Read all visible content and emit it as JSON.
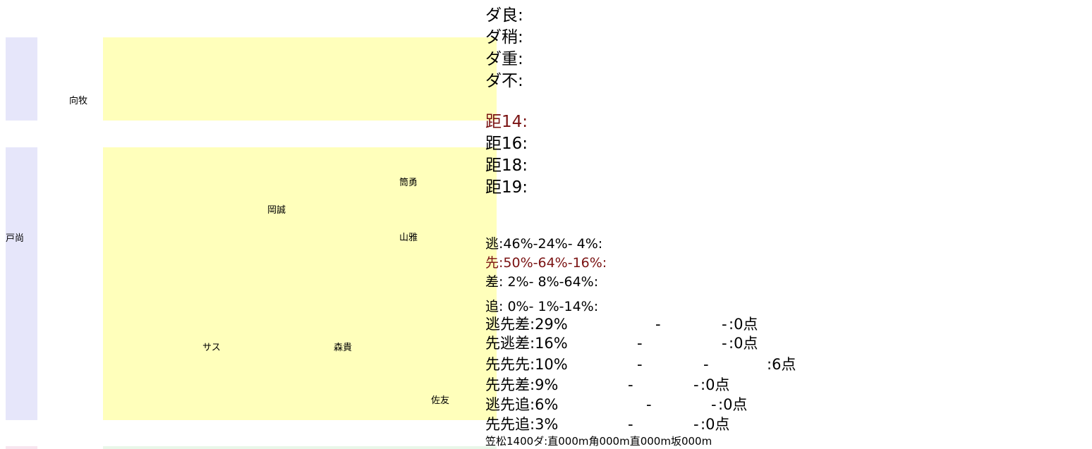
{
  "left_labels": {
    "top_lane": "向牧",
    "middle_lane": "戸尚"
  },
  "jockeys": [
    "筒勇",
    "岡誠",
    "山雅",
    "サス",
    "森貴",
    "佐友"
  ],
  "conditions": [
    "ダ良:",
    "ダ稍:",
    "ダ重:",
    "ダ不:"
  ],
  "distances": [
    {
      "label": "距14:",
      "active": true
    },
    {
      "label": "距16:",
      "active": false
    },
    {
      "label": "距18:",
      "active": false
    },
    {
      "label": "距19:",
      "active": false
    }
  ],
  "pace": [
    {
      "label": "逃:46%-24%- 4%:",
      "active": false
    },
    {
      "label": "先:50%-64%-16%:",
      "active": true
    },
    {
      "label": "差: 2%- 8%-64%:",
      "active": false
    },
    {
      "label": "追: 0%- 1%-14%:",
      "active": false
    }
  ],
  "combos": [
    {
      "label": "逃先差:29%",
      "dash1": "-",
      "dash2": "-",
      "score": ":0点"
    },
    {
      "label": "先逃差:16%",
      "dash1": "-",
      "dash2": "-",
      "score": ":0点"
    },
    {
      "label": "先先先:10%",
      "dash1": "-",
      "dash2": "-",
      "score": ":6点"
    },
    {
      "label": "先先差:9%",
      "dash1": "-",
      "dash2": "-",
      "score": ":0点"
    },
    {
      "label": "逃先追:6%",
      "dash1": "-",
      "dash2": "-",
      "score": ":0点"
    },
    {
      "label": "先先追:3%",
      "dash1": "-",
      "dash2": "-",
      "score": ":0点"
    }
  ],
  "course_info": "笠松1400ダ:直000m角000m直000m坂000m"
}
